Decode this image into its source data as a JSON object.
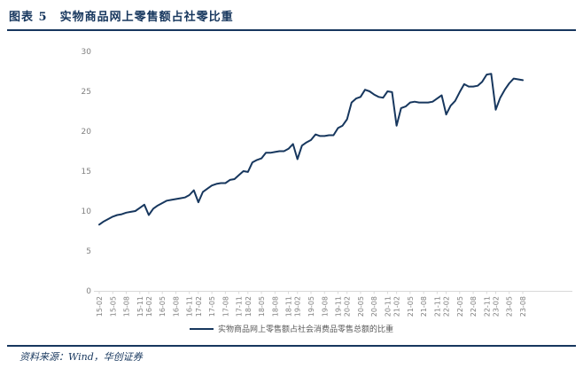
{
  "header": {
    "figure_label": "图表 5",
    "title": "实物商品网上零售额占社零比重"
  },
  "footer": {
    "source_label": "资料来源：Wind，华创证券"
  },
  "colors": {
    "navy": "#17375E",
    "axis_line": "#D9D9D9",
    "axis_text": "#808080",
    "legend_text": "#595959"
  },
  "chart_data": {
    "type": "line",
    "title": "实物商品网上零售额占社零比重",
    "xlabel": "",
    "ylabel": "",
    "ylim": [
      0,
      30
    ],
    "yticks": [
      0,
      5,
      10,
      15,
      20,
      25,
      30
    ],
    "grid": false,
    "legend_position": "bottom",
    "months": [
      "15-02",
      "15-03",
      "15-04",
      "15-05",
      "15-06",
      "15-07",
      "15-08",
      "15-09",
      "15-10",
      "15-11",
      "15-12",
      "16-02",
      "16-03",
      "16-04",
      "16-05",
      "16-06",
      "16-07",
      "16-08",
      "16-09",
      "16-10",
      "16-11",
      "16-12",
      "17-02",
      "17-03",
      "17-04",
      "17-05",
      "17-06",
      "17-07",
      "17-08",
      "17-09",
      "17-10",
      "17-11",
      "17-12",
      "18-02",
      "18-03",
      "18-04",
      "18-05",
      "18-06",
      "18-07",
      "18-08",
      "18-09",
      "18-10",
      "18-11",
      "18-12",
      "19-02",
      "19-03",
      "19-04",
      "19-05",
      "19-06",
      "19-07",
      "19-08",
      "19-09",
      "19-10",
      "19-11",
      "19-12",
      "20-02",
      "20-03",
      "20-04",
      "20-05",
      "20-06",
      "20-07",
      "20-08",
      "20-09",
      "20-10",
      "20-11",
      "20-12",
      "21-02",
      "21-03",
      "21-04",
      "21-05",
      "21-06",
      "21-07",
      "21-08",
      "21-09",
      "21-10",
      "21-11",
      "21-12",
      "22-02",
      "22-03",
      "22-04",
      "22-05",
      "22-06",
      "22-07",
      "22-08",
      "22-09",
      "22-10",
      "22-11",
      "22-12",
      "23-02",
      "23-03",
      "23-04",
      "23-05",
      "23-06",
      "23-07",
      "23-08"
    ],
    "xticks": [
      "15-02",
      "15-05",
      "15-08",
      "15-11",
      "16-02",
      "16-05",
      "16-08",
      "16-11",
      "17-02",
      "17-05",
      "17-08",
      "17-11",
      "18-02",
      "18-05",
      "18-08",
      "18-11",
      "19-02",
      "19-05",
      "19-08",
      "19-11",
      "20-02",
      "20-05",
      "20-08",
      "20-11",
      "21-02",
      "21-05",
      "21-08",
      "21-11",
      "22-02",
      "22-05",
      "22-08",
      "22-11",
      "23-02",
      "23-05",
      "23-08"
    ],
    "series": [
      {
        "name": "实物商品网上零售额占社会消费品零售总额的比重",
        "color": "#17375E",
        "values": [
          8.3,
          8.7,
          9.0,
          9.3,
          9.5,
          9.6,
          9.8,
          9.9,
          10.0,
          10.4,
          10.8,
          9.5,
          10.3,
          10.7,
          11.0,
          11.3,
          11.4,
          11.5,
          11.6,
          11.7,
          12.0,
          12.6,
          11.1,
          12.4,
          12.8,
          13.2,
          13.4,
          13.5,
          13.5,
          13.9,
          14.0,
          14.5,
          15.0,
          14.9,
          16.1,
          16.4,
          16.6,
          17.3,
          17.3,
          17.4,
          17.5,
          17.5,
          17.8,
          18.4,
          16.5,
          18.2,
          18.6,
          18.9,
          19.6,
          19.4,
          19.4,
          19.5,
          19.5,
          20.4,
          20.7,
          21.5,
          23.6,
          24.1,
          24.3,
          25.2,
          25.0,
          24.6,
          24.3,
          24.2,
          25.0,
          24.9,
          20.7,
          22.9,
          23.1,
          23.6,
          23.7,
          23.6,
          23.6,
          23.6,
          23.7,
          24.1,
          24.5,
          22.1,
          23.2,
          23.8,
          24.9,
          25.9,
          25.6,
          25.6,
          25.7,
          26.2,
          27.1,
          27.2,
          22.7,
          24.2,
          25.2,
          26.0,
          26.6,
          26.5,
          26.4
        ]
      }
    ]
  }
}
